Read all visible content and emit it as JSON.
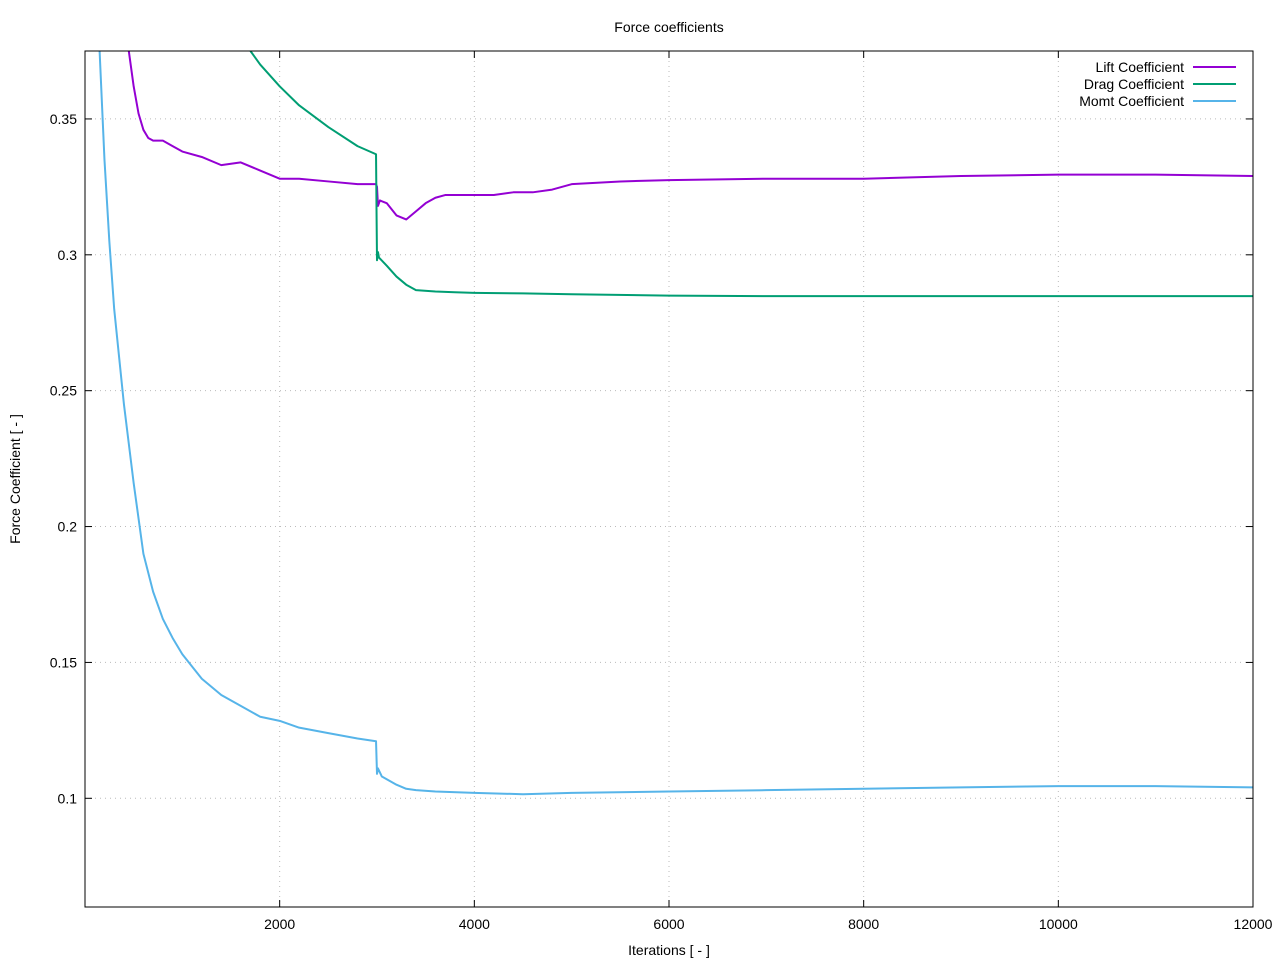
{
  "chart_data": {
    "type": "line",
    "title": "Force coefficients",
    "xlabel": "Iterations [ - ]",
    "ylabel": "Force Coefficient [ - ]",
    "xlim": [
      0,
      12000
    ],
    "ylim": [
      0.06,
      0.375
    ],
    "xticks": [
      2000,
      4000,
      6000,
      8000,
      10000,
      12000
    ],
    "yticks": [
      0.1,
      0.15,
      0.2,
      0.25,
      0.3,
      0.35
    ],
    "x_tick_labels": [
      "2000",
      "4000",
      "6000",
      "8000",
      "10000",
      "12000"
    ],
    "y_tick_labels": [
      "0.1",
      "0.15",
      "0.2",
      "0.25",
      "0.3",
      "0.35"
    ],
    "grid": true,
    "legend_position": "top-right",
    "series": [
      {
        "name": "Lift Coefficient",
        "color": "#9400d3",
        "x": [
          450,
          500,
          550,
          600,
          650,
          700,
          750,
          800,
          900,
          1000,
          1200,
          1400,
          1600,
          1800,
          2000,
          2200,
          2500,
          2800,
          2990,
          3000,
          3010,
          3030,
          3100,
          3200,
          3300,
          3400,
          3500,
          3600,
          3700,
          3800,
          4000,
          4200,
          4400,
          4600,
          4800,
          5000,
          5500,
          6000,
          7000,
          8000,
          9000,
          10000,
          11000,
          12000
        ],
        "values": [
          0.375,
          0.362,
          0.352,
          0.346,
          0.343,
          0.342,
          0.342,
          0.342,
          0.34,
          0.338,
          0.336,
          0.333,
          0.334,
          0.331,
          0.328,
          0.328,
          0.327,
          0.326,
          0.326,
          0.325,
          0.318,
          0.32,
          0.319,
          0.3145,
          0.313,
          0.316,
          0.319,
          0.321,
          0.322,
          0.322,
          0.322,
          0.322,
          0.323,
          0.323,
          0.324,
          0.326,
          0.327,
          0.3275,
          0.328,
          0.328,
          0.329,
          0.3295,
          0.3295,
          0.329
        ]
      },
      {
        "name": "Drag Coefficient",
        "color": "#009e73",
        "x": [
          1700,
          1800,
          2000,
          2200,
          2500,
          2800,
          2990,
          2995,
          3000,
          3010,
          3020,
          3100,
          3200,
          3300,
          3400,
          3600,
          3800,
          4000,
          4500,
          5000,
          6000,
          7000,
          8000,
          9000,
          10000,
          11000,
          12000
        ],
        "values": [
          0.375,
          0.37,
          0.362,
          0.355,
          0.347,
          0.34,
          0.337,
          0.317,
          0.298,
          0.301,
          0.299,
          0.296,
          0.292,
          0.289,
          0.287,
          0.2865,
          0.2862,
          0.286,
          0.2858,
          0.2855,
          0.285,
          0.2848,
          0.2848,
          0.2848,
          0.2848,
          0.2848,
          0.2848
        ]
      },
      {
        "name": "Momt Coefficient",
        "color": "#56b4e9",
        "x": [
          150,
          200,
          250,
          300,
          400,
          500,
          600,
          700,
          800,
          900,
          1000,
          1200,
          1400,
          1600,
          1800,
          2000,
          2200,
          2500,
          2800,
          2990,
          3000,
          3010,
          3050,
          3100,
          3200,
          3300,
          3400,
          3600,
          4000,
          4500,
          5000,
          6000,
          7000,
          8000,
          9000,
          10000,
          11000,
          12000
        ],
        "values": [
          0.375,
          0.335,
          0.305,
          0.28,
          0.245,
          0.216,
          0.19,
          0.176,
          0.166,
          0.159,
          0.153,
          0.144,
          0.138,
          0.134,
          0.13,
          0.1285,
          0.126,
          0.124,
          0.122,
          0.121,
          0.109,
          0.111,
          0.108,
          0.107,
          0.105,
          0.1035,
          0.103,
          0.1025,
          0.102,
          0.1015,
          0.102,
          0.1025,
          0.103,
          0.1035,
          0.104,
          0.1045,
          0.1045,
          0.104
        ]
      }
    ]
  }
}
